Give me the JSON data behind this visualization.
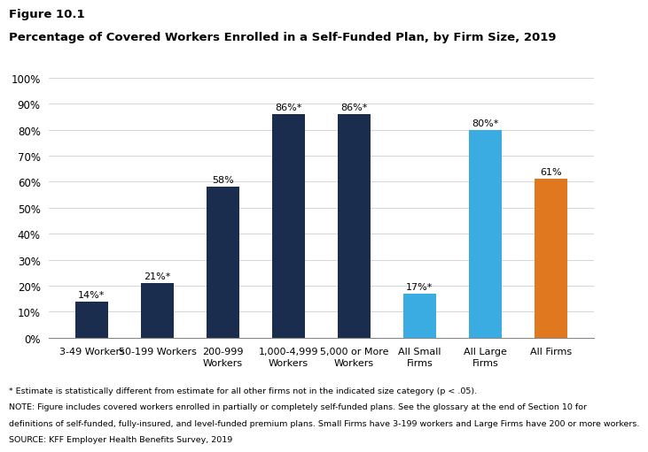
{
  "categories": [
    "3-49 Workers",
    "50-199 Workers",
    "200-999\nWorkers",
    "1,000-4,999\nWorkers",
    "5,000 or More\nWorkers",
    "All Small\nFirms",
    "All Large\nFirms",
    "All Firms"
  ],
  "values": [
    14,
    21,
    58,
    86,
    86,
    17,
    80,
    61
  ],
  "labels": [
    "14%*",
    "21%*",
    "58%",
    "86%*",
    "86%*",
    "17%*",
    "80%*",
    "61%"
  ],
  "colors": [
    "#1b2d4f",
    "#1b2d4f",
    "#1b2d4f",
    "#1b2d4f",
    "#1b2d4f",
    "#3aace2",
    "#3aace2",
    "#e07820"
  ],
  "title_line1": "Figure 10.1",
  "title_line2": "Percentage of Covered Workers Enrolled in a Self-Funded Plan, by Firm Size, 2019",
  "ylim": [
    0,
    100
  ],
  "yticks": [
    0,
    10,
    20,
    30,
    40,
    50,
    60,
    70,
    80,
    90,
    100
  ],
  "ytick_labels": [
    "0%",
    "10%",
    "20%",
    "30%",
    "40%",
    "50%",
    "60%",
    "70%",
    "80%",
    "90%",
    "100%"
  ],
  "footnote1": "* Estimate is statistically different from estimate for all other firms not in the indicated size category (p < .05).",
  "footnote2": "NOTE: Figure includes covered workers enrolled in partially or completely self-funded plans. See the glossary at the end of Section 10 for",
  "footnote3": "definitions of self-funded, fully-insured, and level-funded premium plans. Small Firms have 3-199 workers and Large Firms have 200 or more workers.",
  "footnote4": "SOURCE: KFF Employer Health Benefits Survey, 2019",
  "background_color": "#ffffff",
  "bar_width": 0.5
}
